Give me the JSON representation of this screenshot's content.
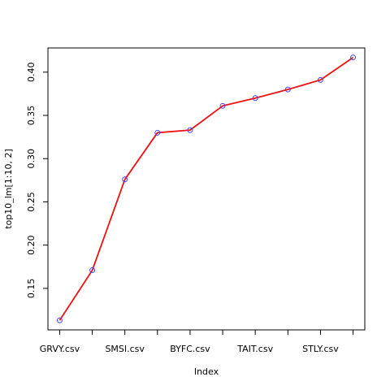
{
  "chart_data": {
    "type": "line",
    "title": "",
    "xlabel": "Index",
    "ylabel": "top10_lm[1:10, 2]",
    "x": [
      1,
      2,
      3,
      4,
      5,
      6,
      7,
      8,
      9,
      10
    ],
    "x_tick_positions": [
      1,
      2,
      3,
      4,
      5,
      6,
      7,
      8,
      9,
      10
    ],
    "x_tick_labels": [
      "GRVY.csv",
      "",
      "SMSI.csv",
      "",
      "BYFC.csv",
      "",
      "TAIT.csv",
      "",
      "STLY.csv",
      ""
    ],
    "y": [
      0.113,
      0.171,
      0.276,
      0.33,
      0.333,
      0.361,
      0.37,
      0.38,
      0.391,
      0.417
    ],
    "xlim": [
      0.64,
      10.36
    ],
    "ylim": [
      0.102,
      0.428
    ],
    "yticks": [
      0.15,
      0.2,
      0.25,
      0.3,
      0.35,
      0.4
    ],
    "ytick_labels": [
      "0.15",
      "0.20",
      "0.25",
      "0.30",
      "0.35",
      "0.40"
    ],
    "grid": false,
    "line_color": "#ee1111",
    "marker_color": "#4444ee",
    "marker": "open-circle"
  }
}
